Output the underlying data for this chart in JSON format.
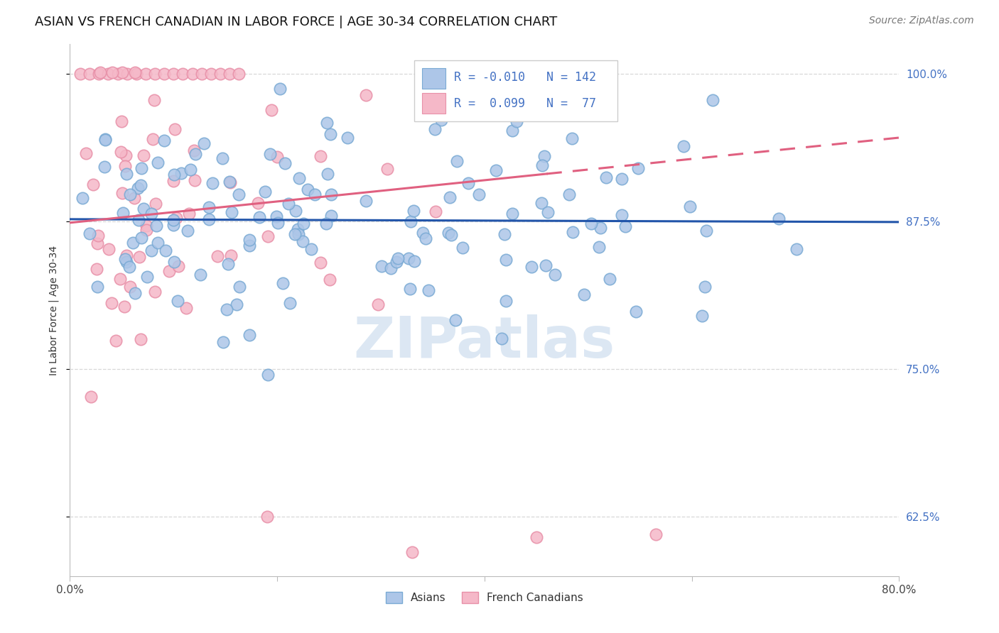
{
  "title": "ASIAN VS FRENCH CANADIAN IN LABOR FORCE | AGE 30-34 CORRELATION CHART",
  "source": "Source: ZipAtlas.com",
  "ylabel": "In Labor Force | Age 30-34",
  "yticks": [
    0.625,
    0.75,
    0.875,
    1.0
  ],
  "ytick_labels": [
    "62.5%",
    "75.0%",
    "87.5%",
    "100.0%"
  ],
  "asian_color": "#adc6e8",
  "asian_edge_color": "#7aaad4",
  "french_color": "#f5b8c8",
  "french_edge_color": "#e890a8",
  "asian_line_color": "#2255aa",
  "french_line_color": "#e06080",
  "r_asian": -0.01,
  "n_asian": 142,
  "r_french": 0.099,
  "n_french": 77,
  "xmin": 0.0,
  "xmax": 0.8,
  "ymin": 0.575,
  "ymax": 1.025,
  "watermark_text": "ZIPatlas",
  "watermark_color": "#c5d8ec",
  "title_fontsize": 13,
  "axis_label_fontsize": 10,
  "tick_fontsize": 11,
  "source_fontsize": 10,
  "background_color": "#ffffff",
  "grid_color": "#d8d8d8",
  "right_tick_color": "#4472c4"
}
